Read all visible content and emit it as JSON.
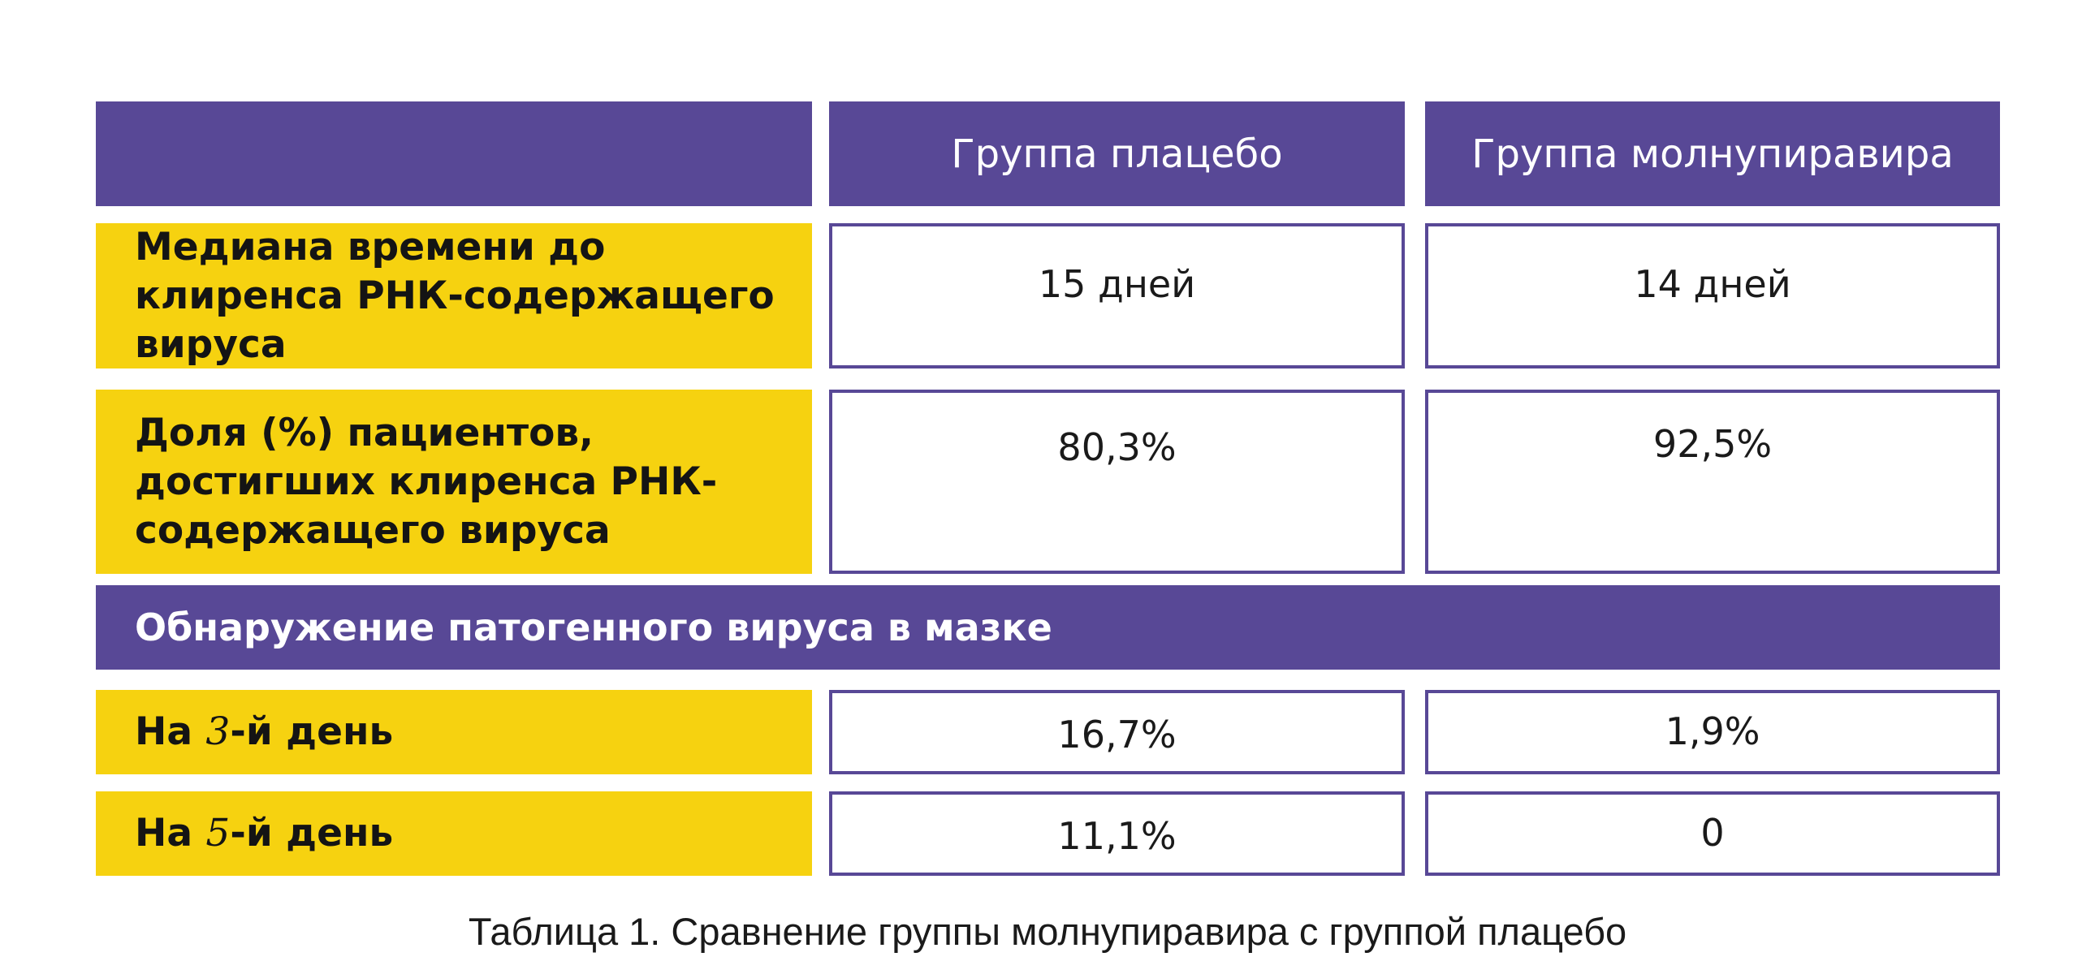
{
  "chart_data": {
    "type": "table",
    "columns": [
      "",
      "Группа плацебо",
      "Группа молнупиравира"
    ],
    "rows": [
      {
        "label": "Медиана времени до клиренса РНК-содержащего вируса",
        "placebo": "15 дней",
        "molnupiravir": "14 дней"
      },
      {
        "label": "Доля (%) пациентов, достигших клиренса РНК-содержащего вируса",
        "placebo": "80,3%",
        "molnupiravir": "92,5%"
      }
    ],
    "section": "Обнаружение патогенного вируса в мазке",
    "section_rows": [
      {
        "label_prefix": "На ",
        "label_day": "3",
        "label_suffix": "-й день",
        "placebo": "16,7%",
        "molnupiravir": "1,9%"
      },
      {
        "label_prefix": "На ",
        "label_day": "5",
        "label_suffix": "-й день",
        "placebo": "11,1%",
        "molnupiravir": "0"
      }
    ],
    "caption": "Таблица 1. Сравнение группы молнупиравира с группой плацебо"
  },
  "colors": {
    "header": "#584896",
    "label": "#f6d210",
    "border": "#584896"
  }
}
